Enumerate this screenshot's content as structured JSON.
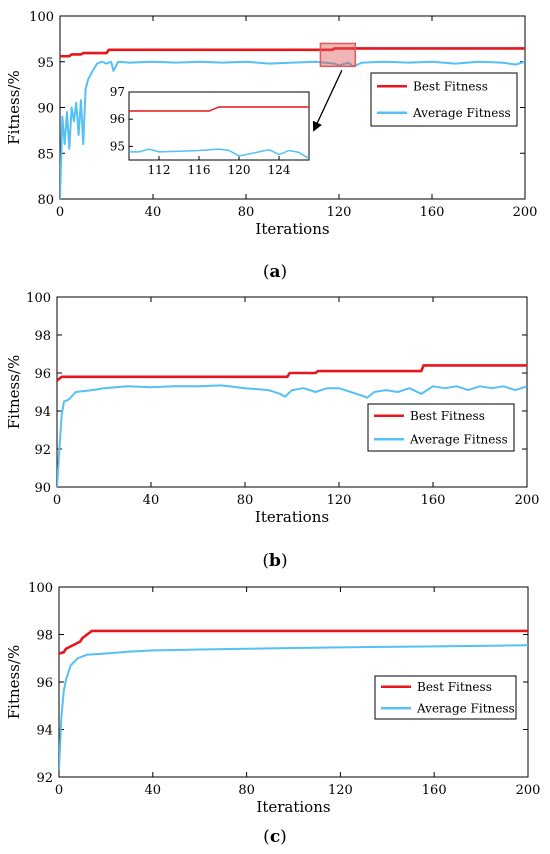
{
  "colors": {
    "best": "#e8151b",
    "average": "#55c0f5",
    "axis": "#000000",
    "highlight": "#e05a5a"
  },
  "chart_data": [
    {
      "panel": "a",
      "caption": "(a)",
      "caption_letter": "a",
      "type": "line",
      "xlabel": "Iterations",
      "ylabel": "Fitness/%",
      "xlim": [
        0,
        200
      ],
      "ylim": [
        80,
        100
      ],
      "xticks": [
        0,
        40,
        80,
        120,
        160,
        200
      ],
      "yticks": [
        80,
        85,
        90,
        95,
        100
      ],
      "legend": {
        "placement": "right",
        "entries": [
          "Best Fitness",
          "Average Fitness"
        ]
      },
      "series": [
        {
          "name": "Best Fitness",
          "color_key": "best",
          "points": [
            [
              0,
              95.6
            ],
            [
              4,
              95.6
            ],
            [
              5,
              95.8
            ],
            [
              9,
              95.8
            ],
            [
              10,
              95.95
            ],
            [
              20,
              95.95
            ],
            [
              21,
              96.3
            ],
            [
              117,
              96.3
            ],
            [
              118,
              96.45
            ],
            [
              200,
              96.45
            ]
          ]
        },
        {
          "name": "Average Fitness",
          "color_key": "average",
          "points": [
            [
              0,
              80
            ],
            [
              1,
              89
            ],
            [
              2,
              86
            ],
            [
              3,
              89.5
            ],
            [
              4,
              85.5
            ],
            [
              5,
              90
            ],
            [
              6,
              88.5
            ],
            [
              7,
              90.5
            ],
            [
              8,
              87
            ],
            [
              9,
              90.8
            ],
            [
              10,
              86
            ],
            [
              11,
              92
            ],
            [
              12,
              93
            ],
            [
              14,
              94
            ],
            [
              16,
              94.8
            ],
            [
              18,
              95
            ],
            [
              20,
              94.8
            ],
            [
              22,
              95
            ],
            [
              23,
              94
            ],
            [
              25,
              95
            ],
            [
              30,
              94.9
            ],
            [
              40,
              95
            ],
            [
              50,
              94.9
            ],
            [
              60,
              95
            ],
            [
              70,
              94.9
            ],
            [
              80,
              95
            ],
            [
              90,
              94.8
            ],
            [
              100,
              94.9
            ],
            [
              110,
              95
            ],
            [
              118,
              94.8
            ],
            [
              120,
              94.6
            ],
            [
              124,
              94.9
            ],
            [
              126,
              94.5
            ],
            [
              130,
              94.9
            ],
            [
              140,
              95
            ],
            [
              150,
              94.9
            ],
            [
              160,
              95
            ],
            [
              170,
              94.8
            ],
            [
              180,
              95
            ],
            [
              190,
              94.9
            ],
            [
              196,
              94.7
            ],
            [
              200,
              95
            ]
          ]
        }
      ],
      "highlight_box": {
        "x": [
          112,
          127
        ],
        "y": [
          94.5,
          97.0
        ]
      },
      "inset": {
        "xlim": [
          109,
          127
        ],
        "ylim": [
          94.5,
          97
        ],
        "xticks": [
          112,
          116,
          120,
          124
        ],
        "yticks": [
          95,
          96,
          97
        ],
        "series": [
          {
            "name": "Best Fitness",
            "color_key": "best",
            "points": [
              [
                109,
                96.3
              ],
              [
                117,
                96.3
              ],
              [
                118,
                96.45
              ],
              [
                127,
                96.45
              ]
            ]
          },
          {
            "name": "Average Fitness",
            "color_key": "average",
            "points": [
              [
                109,
                94.8
              ],
              [
                110,
                94.8
              ],
              [
                111,
                94.9
              ],
              [
                112,
                94.8
              ],
              [
                114,
                94.82
              ],
              [
                116,
                94.85
              ],
              [
                118,
                94.9
              ],
              [
                119,
                94.85
              ],
              [
                120,
                94.65
              ],
              [
                121,
                94.72
              ],
              [
                122,
                94.8
              ],
              [
                123,
                94.88
              ],
              [
                124,
                94.7
              ],
              [
                125,
                94.85
              ],
              [
                126,
                94.78
              ],
              [
                127,
                94.55
              ]
            ]
          }
        ]
      }
    },
    {
      "panel": "b",
      "caption": "(b)",
      "caption_letter": "b",
      "type": "line",
      "xlabel": "Iterations",
      "ylabel": "Fitness/%",
      "xlim": [
        0,
        200
      ],
      "ylim": [
        90,
        100
      ],
      "xticks": [
        0,
        40,
        80,
        120,
        160,
        200
      ],
      "yticks": [
        90,
        92,
        94,
        96,
        98,
        100
      ],
      "legend": {
        "placement": "right",
        "entries": [
          "Best Fitness",
          "Average Fitness"
        ]
      },
      "series": [
        {
          "name": "Best Fitness",
          "color_key": "best",
          "points": [
            [
              0,
              95.6
            ],
            [
              2,
              95.8
            ],
            [
              98,
              95.8
            ],
            [
              99,
              96.0
            ],
            [
              110,
              96.0
            ],
            [
              111,
              96.1
            ],
            [
              155,
              96.1
            ],
            [
              156,
              96.4
            ],
            [
              200,
              96.4
            ]
          ]
        },
        {
          "name": "Average Fitness",
          "color_key": "average",
          "points": [
            [
              0,
              90
            ],
            [
              1,
              92
            ],
            [
              2,
              93.8
            ],
            [
              3,
              94.5
            ],
            [
              5,
              94.6
            ],
            [
              8,
              95.0
            ],
            [
              15,
              95.1
            ],
            [
              20,
              95.2
            ],
            [
              30,
              95.3
            ],
            [
              40,
              95.25
            ],
            [
              50,
              95.3
            ],
            [
              60,
              95.3
            ],
            [
              70,
              95.35
            ],
            [
              80,
              95.2
            ],
            [
              90,
              95.1
            ],
            [
              95,
              94.9
            ],
            [
              97,
              94.75
            ],
            [
              100,
              95.1
            ],
            [
              105,
              95.2
            ],
            [
              110,
              95.0
            ],
            [
              115,
              95.2
            ],
            [
              120,
              95.2
            ],
            [
              125,
              95.0
            ],
            [
              130,
              94.8
            ],
            [
              132,
              94.7
            ],
            [
              135,
              95.0
            ],
            [
              140,
              95.1
            ],
            [
              145,
              95.0
            ],
            [
              150,
              95.2
            ],
            [
              155,
              94.9
            ],
            [
              160,
              95.3
            ],
            [
              165,
              95.2
            ],
            [
              170,
              95.3
            ],
            [
              175,
              95.1
            ],
            [
              180,
              95.3
            ],
            [
              185,
              95.2
            ],
            [
              190,
              95.3
            ],
            [
              195,
              95.1
            ],
            [
              200,
              95.3
            ]
          ]
        }
      ]
    },
    {
      "panel": "c",
      "caption": "(c)",
      "caption_letter": "c",
      "type": "line",
      "xlabel": "Iterations",
      "ylabel": "Fitness/%",
      "xlim": [
        0,
        200
      ],
      "ylim": [
        92,
        100
      ],
      "xticks": [
        0,
        40,
        80,
        120,
        160,
        200
      ],
      "yticks": [
        92,
        94,
        96,
        98,
        100
      ],
      "legend": {
        "placement": "right",
        "entries": [
          "Best Fitness",
          "Average Fitness"
        ]
      },
      "series": [
        {
          "name": "Best Fitness",
          "color_key": "best",
          "points": [
            [
              0,
              97.2
            ],
            [
              2,
              97.25
            ],
            [
              3,
              97.4
            ],
            [
              5,
              97.5
            ],
            [
              7,
              97.6
            ],
            [
              9,
              97.7
            ],
            [
              10,
              97.85
            ],
            [
              12,
              98.0
            ],
            [
              14,
              98.15
            ],
            [
              200,
              98.15
            ]
          ]
        },
        {
          "name": "Average Fitness",
          "color_key": "average",
          "points": [
            [
              0,
              92.3
            ],
            [
              1,
              94.5
            ],
            [
              2,
              95.6
            ],
            [
              3,
              96.1
            ],
            [
              5,
              96.7
            ],
            [
              8,
              97.0
            ],
            [
              12,
              97.15
            ],
            [
              20,
              97.2
            ],
            [
              30,
              97.28
            ],
            [
              40,
              97.33
            ],
            [
              50,
              97.35
            ],
            [
              60,
              97.37
            ],
            [
              80,
              97.4
            ],
            [
              100,
              97.43
            ],
            [
              120,
              97.46
            ],
            [
              140,
              97.48
            ],
            [
              160,
              97.5
            ],
            [
              180,
              97.52
            ],
            [
              200,
              97.55
            ]
          ]
        }
      ]
    }
  ]
}
